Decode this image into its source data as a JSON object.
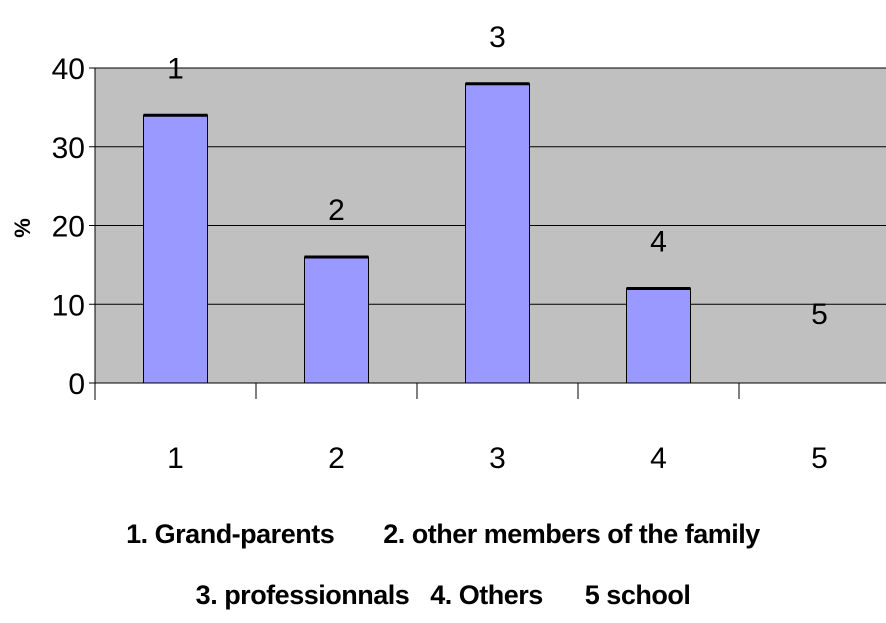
{
  "chart_data": {
    "type": "bar",
    "categories": [
      "1",
      "2",
      "3",
      "4",
      "5"
    ],
    "values": [
      34,
      16,
      38,
      12,
      0
    ],
    "data_labels": [
      "1",
      "2",
      "3",
      "4",
      "5"
    ],
    "ylabel": "%",
    "xlabel": "",
    "ylim": [
      0,
      40
    ],
    "yticks": [
      0,
      10,
      20,
      30,
      40
    ],
    "grid": true,
    "plot_background": "#c0c0c0",
    "bar_color": "#9999ff",
    "legend_lines": [
      "1. Grand-parents       2. other members of the family",
      "3. professionnals   4. Others      5 school"
    ]
  }
}
